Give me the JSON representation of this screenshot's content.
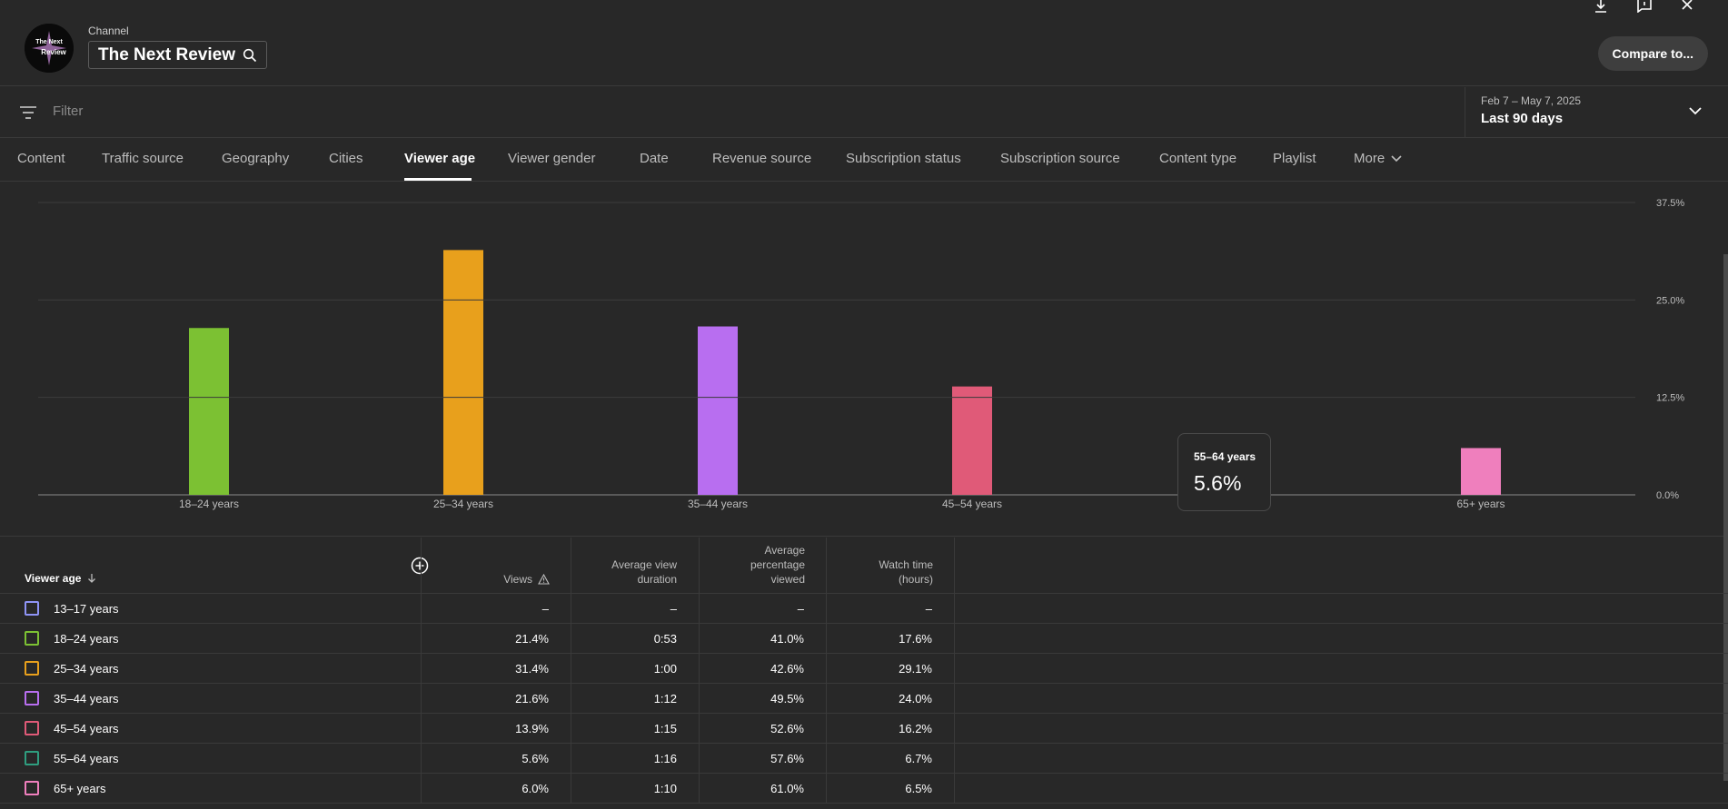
{
  "header": {
    "channel_label": "Channel",
    "channel_name": "The Next Review",
    "avatar_text_top": "The Next",
    "avatar_text_bottom": "Review",
    "compare_label": "Compare to..."
  },
  "filter": {
    "placeholder": "Filter"
  },
  "date_picker": {
    "range": "Feb 7 – May 7, 2025",
    "label": "Last 90 days"
  },
  "tabs": [
    {
      "label": "Content"
    },
    {
      "label": "Traffic source"
    },
    {
      "label": "Geography"
    },
    {
      "label": "Cities"
    },
    {
      "label": "Viewer age"
    },
    {
      "label": "Viewer gender"
    },
    {
      "label": "Date"
    },
    {
      "label": "Revenue source"
    },
    {
      "label": "Subscription status"
    },
    {
      "label": "Subscription source"
    },
    {
      "label": "Content type"
    },
    {
      "label": "Playlist"
    },
    {
      "label": "More"
    }
  ],
  "active_tab": "Viewer age",
  "tooltip": {
    "label": "55–64 years",
    "value": "5.6%"
  },
  "chart_data": {
    "type": "bar",
    "categories": [
      "18–24 years",
      "25–34 years",
      "35–44 years",
      "45–54 years",
      "55–64 years",
      "65+ years"
    ],
    "values": [
      21.4,
      31.4,
      21.6,
      13.9,
      5.6,
      6.0
    ],
    "colors": [
      "#7cc133",
      "#e8a01c",
      "#b86ef0",
      "#e05a78",
      "#2f9e7f",
      "#ef7fbd"
    ],
    "ylim": [
      0,
      37.5
    ],
    "yticks": [
      "37.5%",
      "25.0%",
      "12.5%",
      "0.0%"
    ],
    "ytick_values": [
      37.5,
      25.0,
      12.5,
      0.0
    ],
    "grid": true
  },
  "table": {
    "dimension_header": "Viewer age",
    "headers": {
      "views": "Views",
      "avg_view_duration": [
        "Average view",
        "duration"
      ],
      "avg_pct_viewed": [
        "Average",
        "percentage",
        "viewed"
      ],
      "watch_time": [
        "Watch time",
        "(hours)"
      ]
    },
    "rows": [
      {
        "label": "13–17 years",
        "color": "#8f94f5",
        "views": "–",
        "duration": "–",
        "pct": "–",
        "watch": "–"
      },
      {
        "label": "18–24 years",
        "color": "#7cc133",
        "views": "21.4%",
        "duration": "0:53",
        "pct": "41.0%",
        "watch": "17.6%"
      },
      {
        "label": "25–34 years",
        "color": "#e8a01c",
        "views": "31.4%",
        "duration": "1:00",
        "pct": "42.6%",
        "watch": "29.1%"
      },
      {
        "label": "35–44 years",
        "color": "#b86ef0",
        "views": "21.6%",
        "duration": "1:12",
        "pct": "49.5%",
        "watch": "24.0%"
      },
      {
        "label": "45–54 years",
        "color": "#e05a78",
        "views": "13.9%",
        "duration": "1:15",
        "pct": "52.6%",
        "watch": "16.2%"
      },
      {
        "label": "55–64 years",
        "color": "#2f9e7f",
        "views": "5.6%",
        "duration": "1:16",
        "pct": "57.6%",
        "watch": "6.7%"
      },
      {
        "label": "65+ years",
        "color": "#ef7fbd",
        "views": "6.0%",
        "duration": "1:10",
        "pct": "61.0%",
        "watch": "6.5%"
      }
    ]
  }
}
